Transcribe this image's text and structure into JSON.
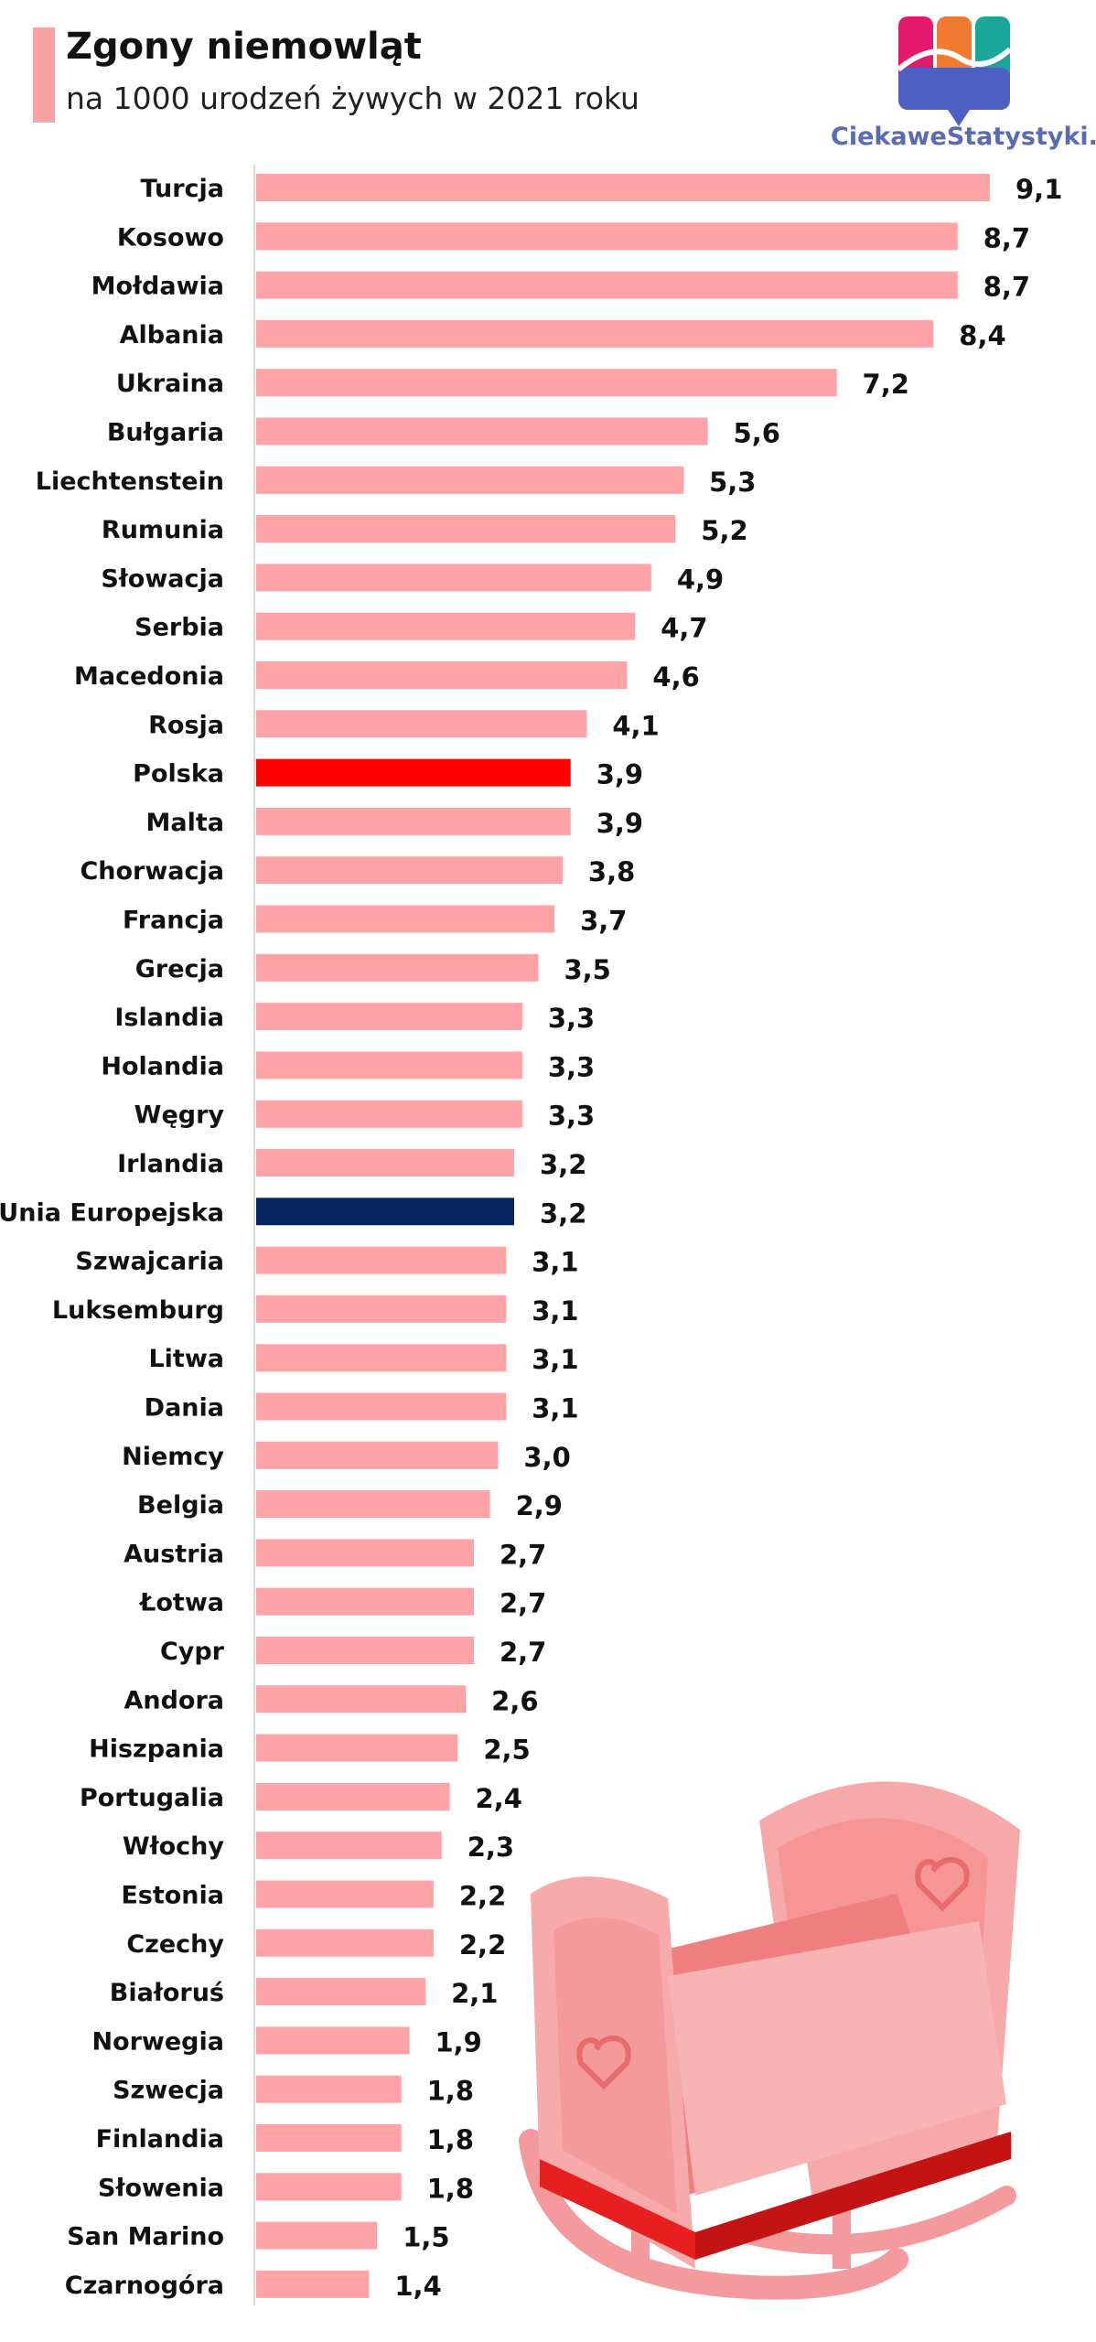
{
  "header": {
    "title": "Zgony niemowląt",
    "subtitle": "na 1000 urodzeń żywych w 2021 roku"
  },
  "logo": {
    "text": "CiekaweStatystyki.pl"
  },
  "colors": {
    "bar": "#ffa3a6",
    "highlight_poland": "#ff0000",
    "highlight_eu": "#082562",
    "header_accent": "#f7a3a3",
    "cradle": "#f59a9c",
    "cradle_band": "#e81f1f"
  },
  "chart_data": {
    "type": "bar",
    "orientation": "horizontal",
    "title": "Zgony niemowląt",
    "subtitle": "na 1000 urodzeń żywych w 2021 roku",
    "xlabel": "",
    "ylabel": "",
    "xlim": [
      0,
      9.1
    ],
    "grid": false,
    "categories": [
      "Turcja",
      "Kosowo",
      "Mołdawia",
      "Albania",
      "Ukraina",
      "Bułgaria",
      "Liechtenstein",
      "Rumunia",
      "Słowacja",
      "Serbia",
      "Macedonia",
      "Rosja",
      "Polska",
      "Malta",
      "Chorwacja",
      "Francja",
      "Grecja",
      "Islandia",
      "Holandia",
      "Węgry",
      "Irlandia",
      "Unia Europejska",
      "Szwajcaria",
      "Luksemburg",
      "Litwa",
      "Dania",
      "Niemcy",
      "Belgia",
      "Austria",
      "Łotwa",
      "Cypr",
      "Andora",
      "Hiszpania",
      "Portugalia",
      "Włochy",
      "Estonia",
      "Czechy",
      "Białoruś",
      "Norwegia",
      "Szwecja",
      "Finlandia",
      "Słowenia",
      "San Marino",
      "Czarnogóra"
    ],
    "values": [
      9.1,
      8.7,
      8.7,
      8.4,
      7.2,
      5.6,
      5.3,
      5.2,
      4.9,
      4.7,
      4.6,
      4.1,
      3.9,
      3.9,
      3.8,
      3.7,
      3.5,
      3.3,
      3.3,
      3.3,
      3.2,
      3.2,
      3.1,
      3.1,
      3.1,
      3.1,
      3.0,
      2.9,
      2.7,
      2.7,
      2.7,
      2.6,
      2.5,
      2.4,
      2.3,
      2.2,
      2.2,
      2.1,
      1.9,
      1.8,
      1.8,
      1.8,
      1.5,
      1.4
    ],
    "value_labels": [
      "9,1",
      "8,7",
      "8,7",
      "8,4",
      "7,2",
      "5,6",
      "5,3",
      "5,2",
      "4,9",
      "4,7",
      "4,6",
      "4,1",
      "3,9",
      "3,9",
      "3,8",
      "3,7",
      "3,5",
      "3,3",
      "3,3",
      "3,3",
      "3,2",
      "3,2",
      "3,1",
      "3,1",
      "3,1",
      "3,1",
      "3,0",
      "2,9",
      "2,7",
      "2,7",
      "2,7",
      "2,6",
      "2,5",
      "2,4",
      "2,3",
      "2,2",
      "2,2",
      "2,1",
      "1,9",
      "1,8",
      "1,8",
      "1,8",
      "1,5",
      "1,4"
    ],
    "highlights": {
      "Polska": "highlight_poland",
      "Unia Europejska": "highlight_eu"
    }
  }
}
